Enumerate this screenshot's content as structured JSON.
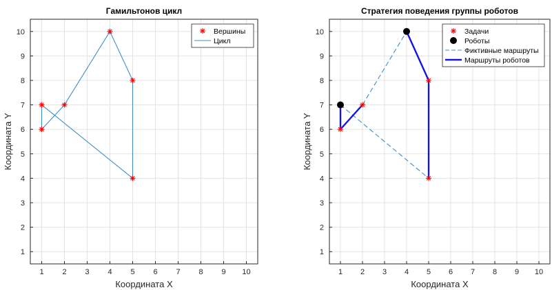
{
  "chart_data": [
    {
      "type": "line",
      "title": "Гамильтонов цикл",
      "xlabel": "Координата X",
      "ylabel": "Координата Y",
      "xlim": [
        0.5,
        10.5
      ],
      "ylim": [
        0.5,
        10.5
      ],
      "xticks": [
        1,
        2,
        3,
        4,
        5,
        6,
        7,
        8,
        9,
        10
      ],
      "yticks": [
        1,
        2,
        3,
        4,
        5,
        6,
        7,
        8,
        9,
        10
      ],
      "grid": true,
      "legend_position": "top-right",
      "series": [
        {
          "name": "Вершины",
          "style": "markers",
          "marker": "star",
          "color": "#ff0000",
          "points": [
            [
              1,
              7
            ],
            [
              1,
              6
            ],
            [
              2,
              7
            ],
            [
              4,
              10
            ],
            [
              5,
              8
            ],
            [
              5,
              4
            ]
          ]
        },
        {
          "name": "Цикл",
          "style": "line",
          "color": "#3a8fc7",
          "points": [
            [
              1,
              7
            ],
            [
              5,
              4
            ],
            [
              5,
              8
            ],
            [
              4,
              10
            ],
            [
              2,
              7
            ],
            [
              1,
              6
            ],
            [
              1,
              7
            ]
          ]
        }
      ]
    },
    {
      "type": "line",
      "title": "Стратегия поведения группы роботов",
      "xlabel": "Координата X",
      "ylabel": "Координата Y",
      "xlim": [
        0.5,
        10.5
      ],
      "ylim": [
        0.5,
        10.5
      ],
      "xticks": [
        1,
        2,
        3,
        4,
        5,
        6,
        7,
        8,
        9,
        10
      ],
      "yticks": [
        1,
        2,
        3,
        4,
        5,
        6,
        7,
        8,
        9,
        10
      ],
      "grid": true,
      "legend_position": "top-right",
      "series": [
        {
          "name": "Задачи",
          "style": "markers",
          "marker": "star",
          "color": "#ff0000",
          "points": [
            [
              1,
              7
            ],
            [
              1,
              6
            ],
            [
              2,
              7
            ],
            [
              4,
              10
            ],
            [
              5,
              8
            ],
            [
              5,
              4
            ]
          ]
        },
        {
          "name": "Роботы",
          "style": "markers",
          "marker": "dot",
          "color": "#000000",
          "points": [
            [
              1,
              7
            ],
            [
              4,
              10
            ]
          ]
        },
        {
          "name": "Фиктивные маршруты",
          "style": "dashed",
          "color": "#3a8fc7",
          "segments": [
            [
              [
                1,
                7
              ],
              [
                5,
                4
              ]
            ],
            [
              [
                2,
                7
              ],
              [
                4,
                10
              ]
            ]
          ]
        },
        {
          "name": "Маршруты роботов",
          "style": "thick",
          "color": "#1414e6",
          "segments": [
            [
              [
                1,
                7
              ],
              [
                1,
                6
              ],
              [
                2,
                7
              ]
            ],
            [
              [
                4,
                10
              ],
              [
                5,
                8
              ],
              [
                5,
                4
              ]
            ]
          ]
        }
      ]
    }
  ]
}
